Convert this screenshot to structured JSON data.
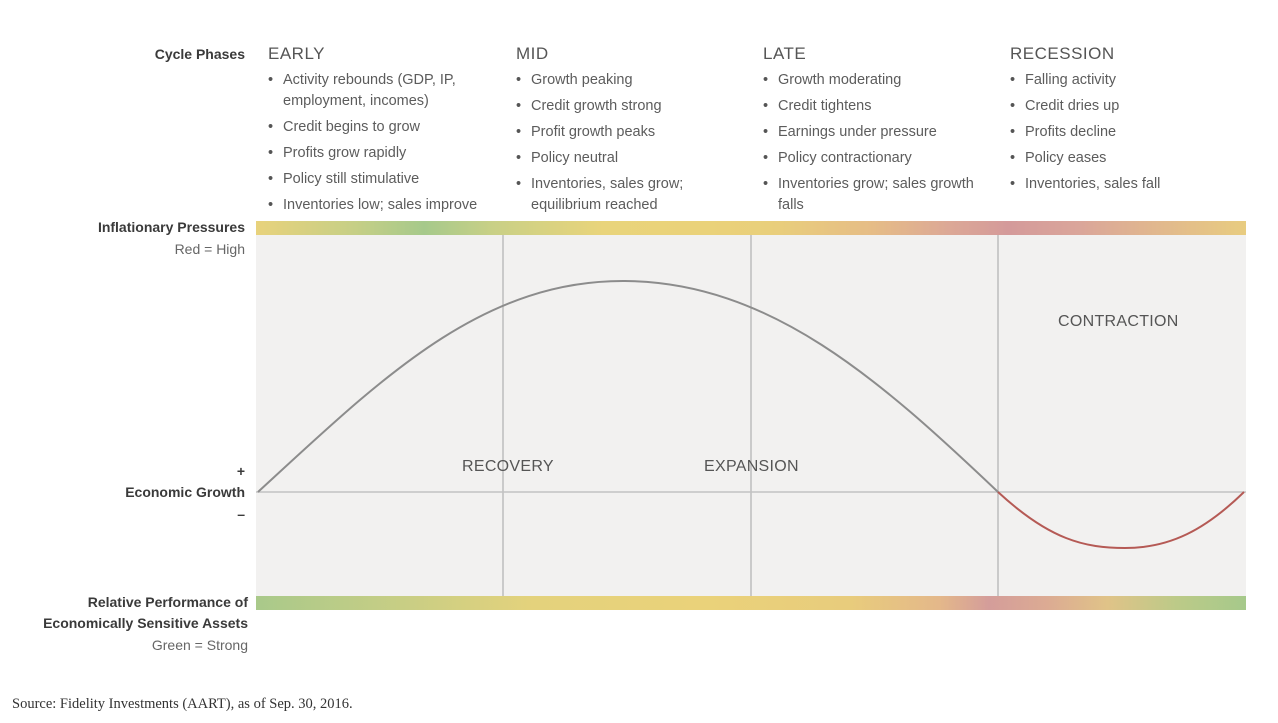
{
  "row_labels": {
    "cycle_phases": "Cycle Phases",
    "inflationary_title": "Inflationary Pressures",
    "inflationary_note": "Red = High",
    "growth_plus": "+",
    "growth_title": "Economic Growth",
    "growth_minus": "–",
    "relative_title_1": "Relative Performance of",
    "relative_title_2": "Economically Sensitive Assets",
    "relative_note": "Green = Strong"
  },
  "phases": [
    {
      "title": "EARLY",
      "bullets": [
        "Activity rebounds (GDP, IP, employment, incomes)",
        "Credit begins to grow",
        "Profits grow rapidly",
        "Policy still stimulative",
        "Inventories low; sales improve"
      ]
    },
    {
      "title": "MID",
      "bullets": [
        "Growth peaking",
        "Credit growth strong",
        "Profit growth peaks",
        "Policy neutral",
        "Inventories, sales grow; equilibrium reached"
      ]
    },
    {
      "title": "LATE",
      "bullets": [
        "Growth moderating",
        "Credit tightens",
        "Earnings under pressure",
        "Policy contractionary",
        "Inventories grow; sales growth falls"
      ]
    },
    {
      "title": "RECESSION",
      "bullets": [
        "Falling activity",
        "Credit dries up",
        "Profits decline",
        "Policy eases",
        "Inventories, sales fall"
      ]
    }
  ],
  "stages": {
    "recovery": "RECOVERY",
    "expansion": "EXPANSION",
    "contraction": "CONTRACTION"
  },
  "colors": {
    "green": "#a8c98a",
    "yellow": "#ead27a",
    "red": "#d4a0a0",
    "growth_curve": "#8c8c8c",
    "recession_curve": "#b55a55",
    "plot_bg": "#f2f1f0"
  },
  "source": "Source: Fidelity Investments (AART), as of Sep. 30, 2016."
}
